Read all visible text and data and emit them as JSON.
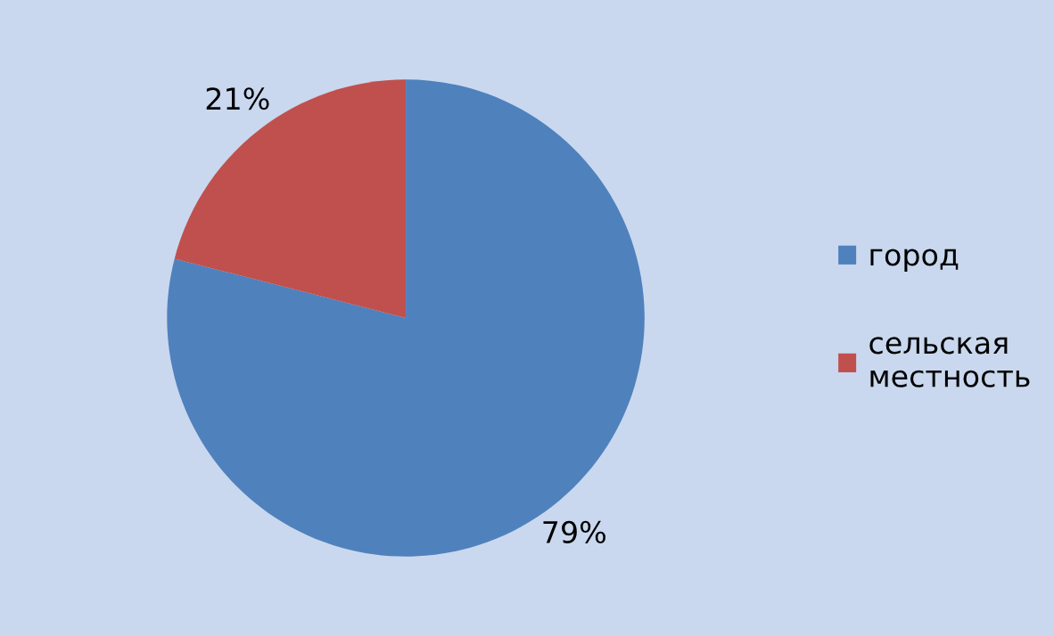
{
  "chart_data": {
    "type": "pie",
    "categories": [
      "город",
      "сельская местность"
    ],
    "values": [
      79,
      21
    ],
    "value_labels": [
      "79%",
      "21%"
    ],
    "colors": [
      "#4f81bd",
      "#c0504d"
    ],
    "legend": "right"
  }
}
